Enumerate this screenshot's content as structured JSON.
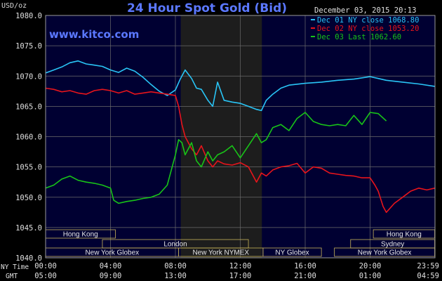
{
  "header": {
    "units": "USD/oz",
    "title": "24 Hour Spot Gold (Bid)",
    "date": "December 03, 2015 20:13",
    "watermark": "www.kitco.com"
  },
  "chart_data": {
    "type": "line",
    "title": "24 Hour Spot Gold (Bid)",
    "ylabel": "USD/oz",
    "ylim": [
      1040,
      1080
    ],
    "xlim": [
      0,
      24
    ],
    "grid": true,
    "legend_placement": "top-right",
    "yticks": [
      "1080.0",
      "1075.0",
      "1070.0",
      "1065.0",
      "1060.0",
      "1055.0",
      "1050.0",
      "1045.0",
      "1040.0"
    ],
    "ytick_values": [
      1080,
      1075,
      1070,
      1065,
      1060,
      1055,
      1050,
      1045,
      1040
    ],
    "x_ny_time_label": "NY Time",
    "x_gmt_label": "GMT",
    "x_ny_ticks": [
      "00:00",
      "04:00",
      "08:00",
      "12:00",
      "16:00",
      "20:00",
      "23:59"
    ],
    "x_gmt_ticks": [
      "05:00",
      "09:00",
      "13:00",
      "17:00",
      "21:00",
      "01:00",
      "04:59"
    ],
    "x_tick_hours": [
      0,
      4,
      8,
      12,
      16,
      20,
      23.98
    ],
    "shaded_region_hours": [
      8.33,
      13.33
    ],
    "series": [
      {
        "name": "Dec 01 NY close 1068.80",
        "color": "#29c5f6",
        "x": [
          0,
          0.5,
          1,
          1.5,
          2,
          2.5,
          3,
          3.5,
          4,
          4.5,
          5,
          5.5,
          6,
          6.5,
          7,
          7.5,
          8,
          8.3,
          8.6,
          9,
          9.3,
          9.6,
          10,
          10.3,
          10.6,
          11,
          11.5,
          12,
          12.5,
          13,
          13.3,
          13.6,
          14,
          14.5,
          15,
          16,
          17,
          18,
          19,
          20,
          20.5,
          21,
          22,
          23,
          23.98
        ],
        "y": [
          1070.5,
          1071.0,
          1071.5,
          1072.2,
          1072.5,
          1072.0,
          1071.8,
          1071.6,
          1071.0,
          1070.6,
          1071.3,
          1070.8,
          1069.8,
          1068.6,
          1067.5,
          1066.8,
          1067.7,
          1069.5,
          1071.0,
          1069.6,
          1068.0,
          1067.8,
          1066.0,
          1065.0,
          1069.0,
          1066.0,
          1065.7,
          1065.5,
          1065.0,
          1064.5,
          1064.3,
          1066.0,
          1067.0,
          1068.0,
          1068.5,
          1068.8,
          1069.0,
          1069.3,
          1069.5,
          1069.9,
          1069.6,
          1069.3,
          1069.0,
          1068.7,
          1068.3
        ]
      },
      {
        "name": "Dec 02 NY close 1053.20",
        "color": "#e8141b",
        "x": [
          0,
          0.5,
          1,
          1.5,
          2,
          2.5,
          3,
          3.5,
          4,
          4.5,
          5,
          5.5,
          6,
          6.5,
          7,
          7.5,
          8,
          8.2,
          8.4,
          8.6,
          9,
          9.3,
          9.6,
          10,
          10.3,
          10.6,
          11,
          11.5,
          12,
          12.5,
          13,
          13.3,
          13.6,
          14,
          14.5,
          15,
          15.5,
          16,
          16.5,
          17,
          17.5,
          18,
          18.5,
          19,
          19.5,
          20,
          20.3,
          20.5,
          20.8,
          21,
          21.5,
          22,
          22.5,
          23,
          23.5,
          23.98
        ],
        "y": [
          1068.0,
          1067.8,
          1067.4,
          1067.6,
          1067.2,
          1067.0,
          1067.6,
          1067.8,
          1067.6,
          1067.2,
          1067.6,
          1067.0,
          1067.2,
          1067.4,
          1067.2,
          1067.0,
          1066.8,
          1065.0,
          1062.0,
          1060.0,
          1058.0,
          1057.0,
          1058.5,
          1056.0,
          1055.0,
          1056.0,
          1055.5,
          1055.3,
          1055.7,
          1055.0,
          1052.5,
          1054.0,
          1053.5,
          1054.5,
          1055.0,
          1055.2,
          1055.6,
          1054.0,
          1055.0,
          1054.8,
          1054.0,
          1053.8,
          1053.6,
          1053.5,
          1053.2,
          1053.2,
          1052.0,
          1051.0,
          1048.5,
          1047.5,
          1049.0,
          1050.0,
          1051.0,
          1051.5,
          1051.2,
          1051.5
        ]
      },
      {
        "name": "Dec 03 Last 1062.60",
        "color": "#18c418",
        "x": [
          0,
          0.5,
          1,
          1.5,
          2,
          2.5,
          3,
          3.5,
          4,
          4.2,
          4.5,
          5,
          5.5,
          6,
          6.5,
          7,
          7.5,
          7.8,
          8,
          8.2,
          8.4,
          8.6,
          9,
          9.3,
          9.6,
          10,
          10.3,
          10.6,
          11,
          11.5,
          12,
          12.5,
          13,
          13.3,
          13.6,
          14,
          14.5,
          15,
          15.5,
          16,
          16.5,
          17,
          17.5,
          18,
          18.5,
          19,
          19.5,
          20,
          20.5,
          21
        ],
        "y": [
          1051.5,
          1052.0,
          1053.0,
          1053.5,
          1052.8,
          1052.5,
          1052.3,
          1052.0,
          1051.5,
          1049.5,
          1049.0,
          1049.3,
          1049.5,
          1049.8,
          1050.0,
          1050.5,
          1052.0,
          1055.0,
          1057.0,
          1059.5,
          1059.0,
          1057.0,
          1059.0,
          1056.0,
          1055.0,
          1057.5,
          1056.0,
          1057.0,
          1057.5,
          1058.5,
          1056.5,
          1058.5,
          1060.5,
          1059.0,
          1059.5,
          1061.5,
          1062.0,
          1061.0,
          1063.0,
          1064.0,
          1062.5,
          1062.0,
          1061.8,
          1062.0,
          1061.8,
          1063.5,
          1062.0,
          1064.0,
          1063.8,
          1062.6
        ]
      }
    ],
    "markets": [
      {
        "label": "Hong Kong",
        "start": 0,
        "end": 4.3,
        "row": 0
      },
      {
        "label": "Hong Kong",
        "start": 20.2,
        "end": 23.98,
        "row": 0
      },
      {
        "label": "London",
        "start": 3.5,
        "end": 12.5,
        "row": 1
      },
      {
        "label": "Sydney",
        "start": 18.8,
        "end": 23.98,
        "row": 1
      },
      {
        "label": "New York Globex",
        "start": 0,
        "end": 8.2,
        "row": 2
      },
      {
        "label": "New York NYMEX",
        "start": 8.2,
        "end": 13.4,
        "row": 2
      },
      {
        "label": "NY Globex",
        "start": 13.4,
        "end": 17.0,
        "row": 2
      },
      {
        "label": "New York Globex",
        "start": 17.8,
        "end": 23.98,
        "row": 2
      }
    ]
  }
}
